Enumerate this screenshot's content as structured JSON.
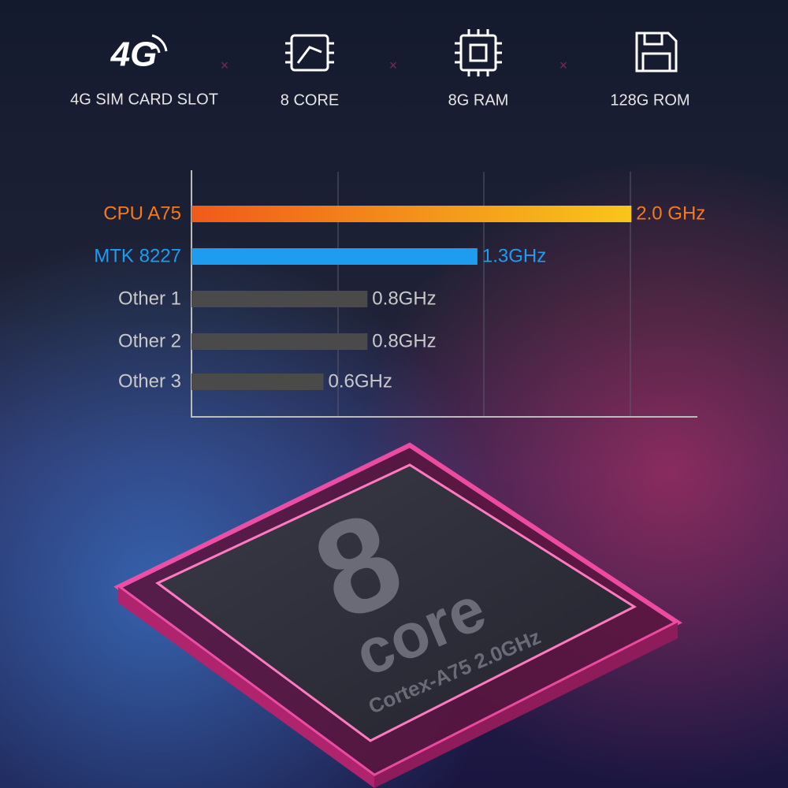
{
  "features": [
    {
      "icon": "4G",
      "label": "4G SIM CARD SLOT"
    },
    {
      "label": "8 CORE"
    },
    {
      "label": "8G RAM"
    },
    {
      "label": "128G ROM"
    }
  ],
  "chart_data": {
    "type": "bar",
    "orientation": "horizontal",
    "categories": [
      "CPU A75",
      "MTK 8227",
      "Other 1",
      "Other 2",
      "Other 3"
    ],
    "values": [
      2.0,
      1.3,
      0.8,
      0.8,
      0.6
    ],
    "value_labels": [
      "2.0 GHz",
      "1.3GHz",
      "0.8GHz",
      "0.8GHz",
      "0.6GHz"
    ],
    "colors": [
      "#f47a1c",
      "#1e9cf0",
      "#4a4a4a",
      "#4a4a4a",
      "#4a4a4a"
    ],
    "label_colors": [
      "#f47a1c",
      "#1e9cf0",
      "#c8c8c8",
      "#c8c8c8",
      "#c8c8c8"
    ],
    "xlim": [
      0,
      2.3
    ]
  },
  "chip": {
    "big": "8",
    "word": "core",
    "caption": "Cortex-A75 2.0GHz"
  }
}
